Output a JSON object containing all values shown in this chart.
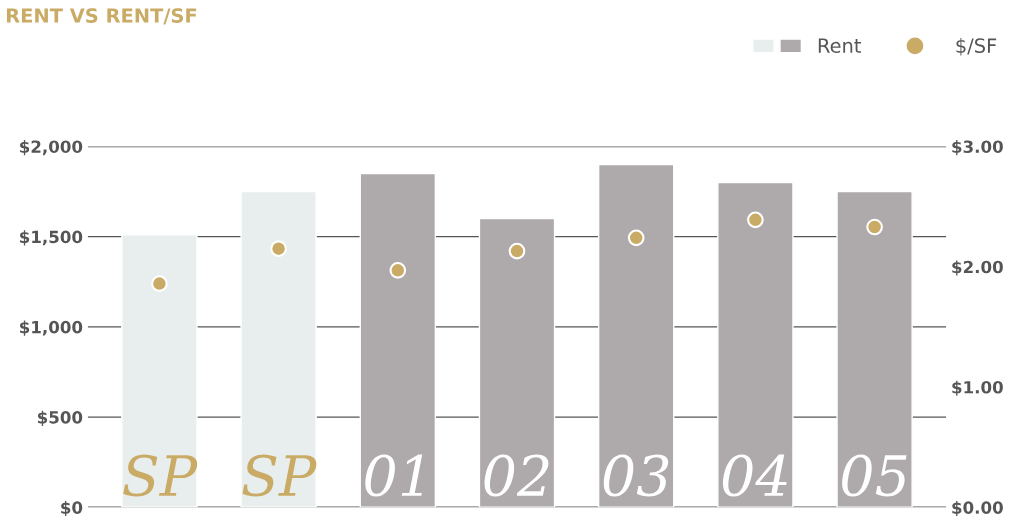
{
  "chart_data": {
    "type": "bar",
    "title": "RENT VS RENT/SF",
    "categories": [
      "SP",
      "SP",
      "01",
      "02",
      "03",
      "04",
      "05"
    ],
    "series": [
      {
        "name": "Rent",
        "colors": [
          "#e8eeee",
          "#e8eeee",
          "#aea9aa",
          "#aea9aa",
          "#aea9aa",
          "#aea9aa",
          "#aea9aa"
        ],
        "values": [
          1510,
          1750,
          1850,
          1600,
          1900,
          1800,
          1750
        ]
      },
      {
        "name": "$/SF",
        "type": "scatter",
        "axis": "y2",
        "color": "#c9ab66",
        "values": [
          1.86,
          2.15,
          1.97,
          2.13,
          2.24,
          2.39,
          2.33
        ]
      }
    ],
    "ylim": [
      0,
      2000
    ],
    "yticks": [
      {
        "value": 0,
        "label": "$0"
      },
      {
        "value": 500,
        "label": "$500"
      },
      {
        "value": 1000,
        "label": "$1,000"
      },
      {
        "value": 1500,
        "label": "$1,500"
      },
      {
        "value": 2000,
        "label": "$2,000"
      }
    ],
    "y2lim": [
      0,
      3
    ],
    "y2ticks": [
      {
        "value": 0,
        "label": "$0.00"
      },
      {
        "value": 1,
        "label": "$1.00"
      },
      {
        "value": 2,
        "label": "$2.00"
      },
      {
        "value": 3,
        "label": "$3.00"
      }
    ],
    "grid": "y",
    "legend": "top right",
    "marker": "circle"
  }
}
